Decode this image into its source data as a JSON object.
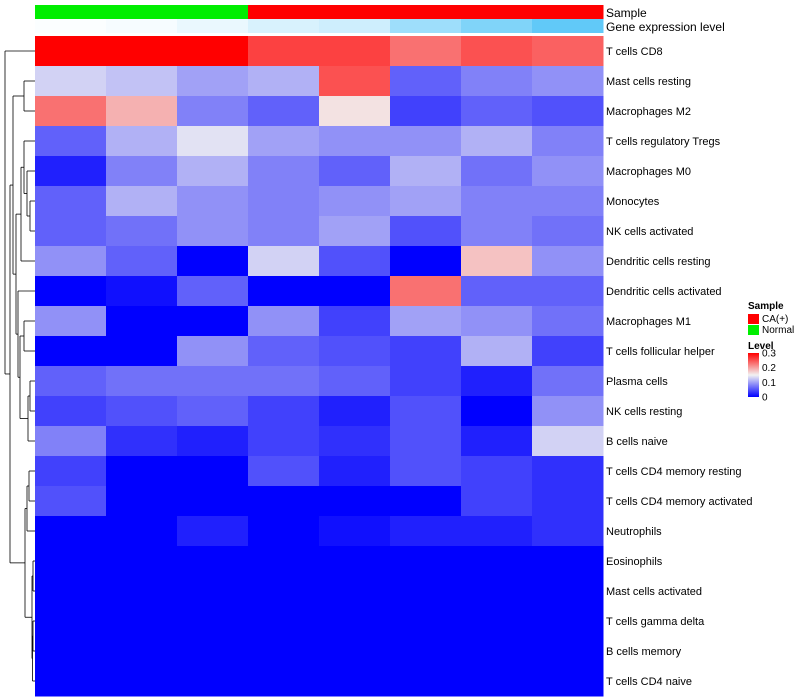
{
  "chart_data": {
    "type": "heatmap",
    "rows": [
      "T cells CD8",
      "Mast cells resting",
      "Macrophages M2",
      "T cells regulatory  Tregs",
      "Macrophages M0",
      "Monocytes",
      "NK cells activated",
      "Dendritic cells resting",
      "Dendritic cells activated",
      "Macrophages M1",
      "T cells follicular helper",
      "Plasma cells",
      "NK cells resting",
      "B cells naive",
      "T cells CD4 memory resting",
      "T cells CD4 memory activated",
      "Neutrophils",
      "Eosinophils",
      "Mast cells activated",
      "T cells gamma delta",
      "B cells memory",
      "T cells CD4 naive"
    ],
    "values": [
      [
        0.3,
        0.3,
        0.3,
        0.26,
        0.26,
        0.23,
        0.25,
        0.24
      ],
      [
        0.13,
        0.12,
        0.1,
        0.11,
        0.25,
        0.06,
        0.08,
        0.09
      ],
      [
        0.23,
        0.19,
        0.08,
        0.06,
        0.16,
        0.04,
        0.06,
        0.05
      ],
      [
        0.06,
        0.11,
        0.14,
        0.1,
        0.09,
        0.09,
        0.11,
        0.08
      ],
      [
        0.02,
        0.08,
        0.11,
        0.08,
        0.06,
        0.11,
        0.07,
        0.09
      ],
      [
        0.06,
        0.11,
        0.09,
        0.08,
        0.09,
        0.1,
        0.08,
        0.08
      ],
      [
        0.06,
        0.07,
        0.09,
        0.08,
        0.1,
        0.05,
        0.08,
        0.07
      ],
      [
        0.09,
        0.06,
        0.0,
        0.13,
        0.05,
        0.0,
        0.18,
        0.09
      ],
      [
        0.0,
        0.01,
        0.06,
        0.0,
        0.0,
        0.23,
        0.06,
        0.06
      ],
      [
        0.09,
        0.0,
        0.0,
        0.09,
        0.04,
        0.1,
        0.09,
        0.07
      ],
      [
        0.0,
        0.0,
        0.09,
        0.06,
        0.05,
        0.04,
        0.11,
        0.04
      ],
      [
        0.06,
        0.07,
        0.07,
        0.07,
        0.06,
        0.04,
        0.02,
        0.07
      ],
      [
        0.04,
        0.05,
        0.06,
        0.04,
        0.02,
        0.05,
        0.0,
        0.09
      ],
      [
        0.08,
        0.03,
        0.02,
        0.04,
        0.03,
        0.05,
        0.02,
        0.13
      ],
      [
        0.04,
        0.0,
        0.0,
        0.05,
        0.02,
        0.05,
        0.04,
        0.03
      ],
      [
        0.05,
        0.0,
        0.0,
        0.0,
        0.0,
        0.0,
        0.04,
        0.03
      ],
      [
        0.0,
        0.0,
        0.02,
        0.0,
        0.01,
        0.02,
        0.02,
        0.03
      ],
      [
        0.0,
        0.0,
        0.0,
        0.0,
        0.0,
        0.0,
        0.0,
        0.0
      ],
      [
        0.0,
        0.0,
        0.0,
        0.0,
        0.0,
        0.0,
        0.0,
        0.0
      ],
      [
        0.0,
        0.0,
        0.0,
        0.0,
        0.0,
        0.0,
        0.0,
        0.0
      ],
      [
        0.0,
        0.0,
        0.0,
        0.0,
        0.0,
        0.0,
        0.0,
        0.0
      ],
      [
        0.0,
        0.0,
        0.0,
        0.0,
        0.0,
        0.0,
        0.0,
        0.0
      ]
    ],
    "column_annotations": {
      "sample": {
        "label": "Sample",
        "values": [
          "Normal",
          "Normal",
          "Normal",
          "CA(+)",
          "CA(+)",
          "CA(+)",
          "CA(+)",
          "CA(+)"
        ]
      },
      "gene_expression": {
        "label": "Gene expression level",
        "values": [
          0.02,
          0.05,
          0.12,
          0.22,
          0.28,
          0.55,
          0.72,
          0.9
        ]
      }
    },
    "legend": {
      "placement": "right",
      "sample": {
        "title": "Sample",
        "entries": [
          {
            "label": "CA(+)",
            "color": "#ff0000"
          },
          {
            "label": "Normal",
            "color": "#00ee00"
          }
        ]
      },
      "level": {
        "title": "Level",
        "ticks": [
          {
            "value": 0.3,
            "label": "0.3"
          },
          {
            "value": 0.2,
            "label": "0.2"
          },
          {
            "value": 0.1,
            "label": "0.1"
          },
          {
            "value": 0,
            "label": "0"
          }
        ]
      }
    },
    "color_scale": {
      "low": "#0000ff",
      "mid": "#f2f2f2",
      "high": "#ff0000",
      "domain": [
        0,
        0.15,
        0.3
      ]
    },
    "annotation_colors": {
      "gene_low": "#ffffff",
      "gene_high": "#4fc3f7"
    },
    "row_dendrogram": true
  }
}
